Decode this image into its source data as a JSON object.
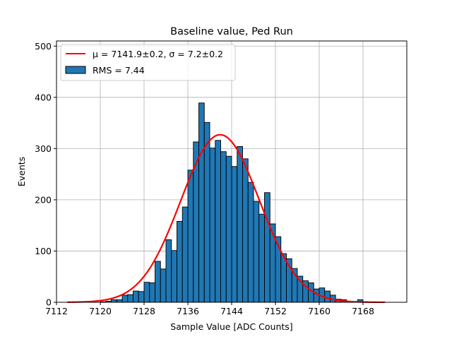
{
  "chart_data": {
    "type": "bar",
    "title": "Baseline value, Ped Run",
    "xlabel": "Sample Value [ADC Counts]",
    "ylabel": "Events",
    "xlim": [
      7112,
      7176
    ],
    "ylim": [
      0,
      510
    ],
    "xticks": [
      7112,
      7120,
      7128,
      7136,
      7144,
      7152,
      7160,
      7168
    ],
    "yticks": [
      0,
      100,
      200,
      300,
      400,
      500
    ],
    "grid": true,
    "legend_position": "top-left",
    "bin_width": 1,
    "series": [
      {
        "name": "RMS = 7.44",
        "kind": "histogram",
        "color": "#1f77b4",
        "bin_starts": [
          7114,
          7115,
          7116,
          7117,
          7118,
          7119,
          7120,
          7121,
          7122,
          7123,
          7124,
          7125,
          7126,
          7127,
          7128,
          7129,
          7130,
          7131,
          7132,
          7133,
          7134,
          7135,
          7136,
          7137,
          7138,
          7139,
          7140,
          7141,
          7142,
          7143,
          7144,
          7145,
          7146,
          7147,
          7148,
          7149,
          7150,
          7151,
          7152,
          7153,
          7154,
          7155,
          7156,
          7157,
          7158,
          7159,
          7160,
          7161,
          7162,
          7163,
          7164,
          7165,
          7166,
          7167,
          7168,
          7169,
          7170
        ],
        "values": [
          0,
          0,
          0,
          0,
          0,
          0,
          1,
          2,
          5,
          5,
          14,
          15,
          22,
          21,
          39,
          38,
          80,
          65,
          122,
          101,
          158,
          186,
          258,
          313,
          389,
          351,
          301,
          316,
          294,
          285,
          265,
          304,
          280,
          234,
          197,
          172,
          214,
          153,
          128,
          95,
          85,
          66,
          51,
          42,
          38,
          26,
          28,
          22,
          14,
          6,
          5,
          2,
          1,
          5,
          1,
          0,
          0
        ]
      },
      {
        "name": "$\\mu = 7141.9 \\pm 0.2$, $\\sigma = 7.2 \\pm 0.2$",
        "kind": "gaussian-fit",
        "color": "#ff0000",
        "mu": 7141.9,
        "sigma": 7.2,
        "amplitude": 327,
        "x_range": [
          7114,
          7172
        ]
      }
    ],
    "legend": {
      "fit_label": "μ = 7141.9±0.2, σ = 7.2±0.2",
      "hist_label": "RMS = 7.44"
    }
  }
}
